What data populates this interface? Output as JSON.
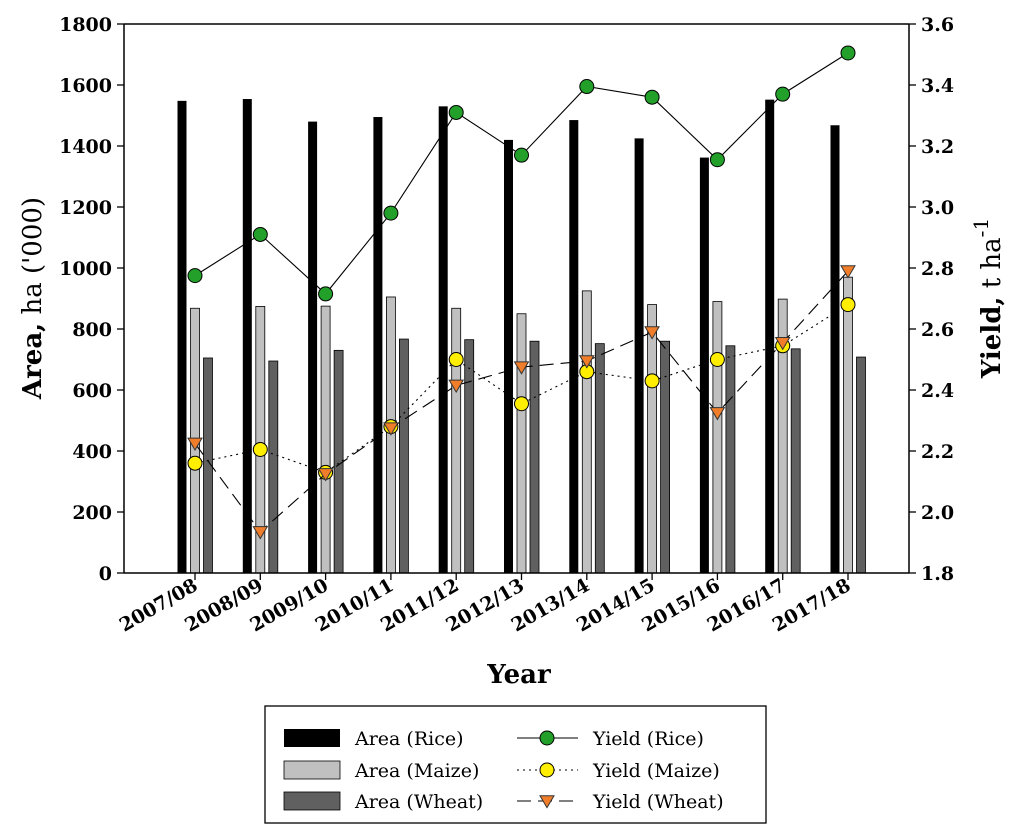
{
  "chart_data": {
    "type": "bar",
    "categories": [
      "2007/08",
      "2008/09",
      "2009/10",
      "2010/11",
      "2011/12",
      "2012/13",
      "2013/14",
      "2014/15",
      "2015/16",
      "2016/17",
      "2017/18"
    ],
    "xlabel": "Year",
    "ylabel_left": {
      "bold": "Area,",
      "rest": " ha ('000)"
    },
    "ylabel_right": {
      "bold": "Yield,",
      "rest": " t ha",
      "sup": "-1"
    },
    "ylim_left": [
      0,
      1800
    ],
    "yticks_left": [
      0,
      200,
      400,
      600,
      800,
      1000,
      1200,
      1400,
      1600,
      1800
    ],
    "ylim_right": [
      1.8,
      3.6
    ],
    "yticks_right": [
      "1.8",
      "2.0",
      "2.2",
      "2.4",
      "2.6",
      "2.8",
      "3.0",
      "3.2",
      "3.4",
      "3.6"
    ],
    "bar_series": [
      {
        "name": "Area (Rice)",
        "color": "#000000",
        "values": [
          1548,
          1554,
          1480,
          1495,
          1530,
          1420,
          1485,
          1425,
          1362,
          1552,
          1468
        ]
      },
      {
        "name": "Area (Maize)",
        "color": "#c0c0c0",
        "values": [
          868,
          874,
          875,
          905,
          868,
          850,
          925,
          880,
          890,
          898,
          970
        ]
      },
      {
        "name": "Area (Wheat)",
        "color": "#606060",
        "values": [
          705,
          695,
          730,
          767,
          765,
          760,
          752,
          760,
          745,
          735,
          708
        ]
      }
    ],
    "line_series": [
      {
        "name": "Yield (Rice)",
        "marker": "circle",
        "fill": "#22a02a",
        "dash": "",
        "values": [
          2.775,
          2.91,
          2.715,
          2.98,
          3.31,
          3.17,
          3.395,
          3.36,
          3.155,
          3.37,
          3.505
        ]
      },
      {
        "name": "Yield (Maize)",
        "marker": "circle",
        "fill": "#ffee00",
        "dash": "2,4",
        "values": [
          2.16,
          2.205,
          2.13,
          2.28,
          2.5,
          2.355,
          2.46,
          2.43,
          2.5,
          2.545,
          2.68
        ]
      },
      {
        "name": "Yield (Wheat)",
        "marker": "triangle-down",
        "fill": "#f07d2a",
        "dash": "14,7",
        "values": [
          2.225,
          1.935,
          2.125,
          2.275,
          2.415,
          2.475,
          2.495,
          2.59,
          2.325,
          2.555,
          2.79
        ]
      }
    ],
    "legend": {
      "position": "bottom",
      "bar_entries": [
        "Area (Rice)",
        "Area (Maize)",
        "Area (Wheat)"
      ],
      "line_entries": [
        "Yield (Rice)",
        "Yield (Maize)",
        "Yield (Wheat)"
      ]
    }
  }
}
